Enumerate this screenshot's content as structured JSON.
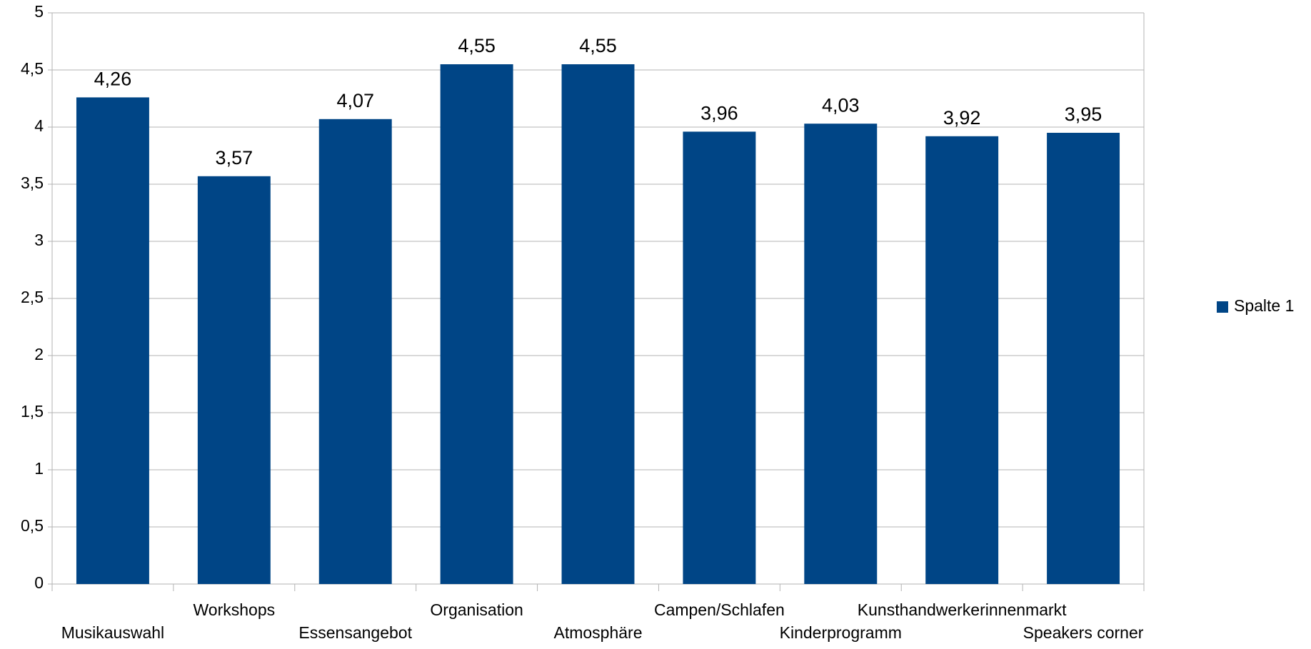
{
  "chart_data": {
    "type": "bar",
    "categories": [
      "Musikauswahl",
      "Workshops",
      "Essensangebot",
      "Organisation",
      "Atmosphäre",
      "Campen/Schlafen",
      "Kinderprogramm",
      "Kunsthandwerkerinnenmarkt",
      "Speakers corner"
    ],
    "series": [
      {
        "name": "Spalte 1",
        "color": "#004586",
        "values": [
          4.26,
          3.57,
          4.07,
          4.55,
          4.55,
          3.96,
          4.03,
          3.92,
          3.95
        ],
        "value_labels": [
          "4,26",
          "3,57",
          "4,07",
          "4,55",
          "4,55",
          "3,96",
          "4,03",
          "3,92",
          "3,95"
        ]
      }
    ],
    "ylim": [
      0,
      5
    ],
    "yticks": [
      0,
      {
        "value": 0.5,
        "label": "0,5"
      },
      1,
      {
        "value": 1.5,
        "label": "1,5"
      },
      2,
      {
        "value": 2.5,
        "label": "2,5"
      },
      3,
      {
        "value": 3.5,
        "label": "3,5"
      },
      4,
      {
        "value": 4.5,
        "label": "4,5"
      },
      5
    ],
    "grid": true,
    "legend": "right"
  }
}
